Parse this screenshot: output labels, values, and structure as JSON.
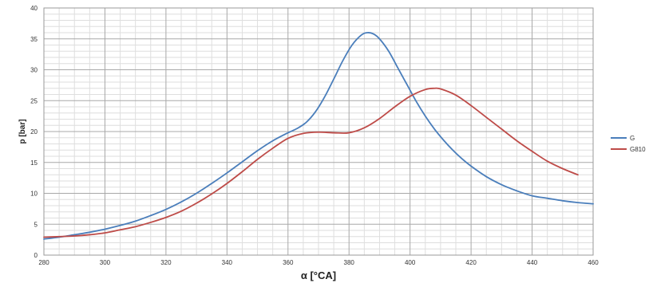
{
  "chart_data": {
    "type": "line",
    "title": "",
    "xlabel": "α [°CA]",
    "ylabel": "p [bar]",
    "xlim": [
      280,
      460
    ],
    "ylim": [
      0,
      40
    ],
    "x_ticks": [
      "280",
      "300",
      "320",
      "340",
      "360",
      "380",
      "400",
      "420",
      "440",
      "460"
    ],
    "y_ticks": [
      "0",
      "5",
      "10",
      "15",
      "20",
      "25",
      "30",
      "35",
      "40"
    ],
    "grid": true,
    "legend_position": "right",
    "series": [
      {
        "name": "G",
        "color": "#4a7ebb",
        "x": [
          280,
          285,
          290,
          295,
          300,
          305,
          310,
          315,
          320,
          325,
          330,
          335,
          340,
          345,
          350,
          355,
          360,
          363,
          366,
          369,
          372,
          375,
          378,
          381,
          384,
          386,
          388,
          390,
          393,
          396,
          399,
          402,
          405,
          408,
          411,
          414,
          417,
          420,
          425,
          430,
          435,
          440,
          445,
          450,
          455,
          460
        ],
        "y": [
          2.6,
          2.9,
          3.3,
          3.7,
          4.2,
          4.8,
          5.5,
          6.4,
          7.4,
          8.6,
          10.0,
          11.6,
          13.3,
          15.1,
          16.9,
          18.5,
          19.8,
          20.5,
          21.5,
          23.2,
          25.6,
          28.5,
          31.5,
          34.0,
          35.6,
          36.0,
          35.8,
          35.0,
          33.0,
          30.3,
          27.6,
          24.9,
          22.5,
          20.4,
          18.6,
          17.0,
          15.6,
          14.4,
          12.7,
          11.4,
          10.4,
          9.6,
          9.2,
          8.8,
          8.5,
          8.3
        ]
      },
      {
        "name": "G810",
        "color": "#be4b48",
        "x": [
          280,
          285,
          290,
          295,
          300,
          305,
          310,
          315,
          320,
          325,
          330,
          335,
          340,
          345,
          350,
          355,
          360,
          365,
          370,
          375,
          380,
          385,
          390,
          395,
          400,
          405,
          408,
          410,
          415,
          420,
          425,
          430,
          435,
          440,
          445,
          450,
          455
        ],
        "y": [
          2.9,
          3.0,
          3.1,
          3.3,
          3.6,
          4.1,
          4.6,
          5.3,
          6.1,
          7.1,
          8.4,
          9.9,
          11.6,
          13.5,
          15.5,
          17.3,
          18.9,
          19.7,
          19.9,
          19.8,
          19.8,
          20.6,
          22.1,
          24.0,
          25.7,
          26.8,
          27.0,
          26.9,
          25.9,
          24.2,
          22.3,
          20.4,
          18.5,
          16.8,
          15.2,
          14.0,
          13.0
        ]
      }
    ]
  }
}
